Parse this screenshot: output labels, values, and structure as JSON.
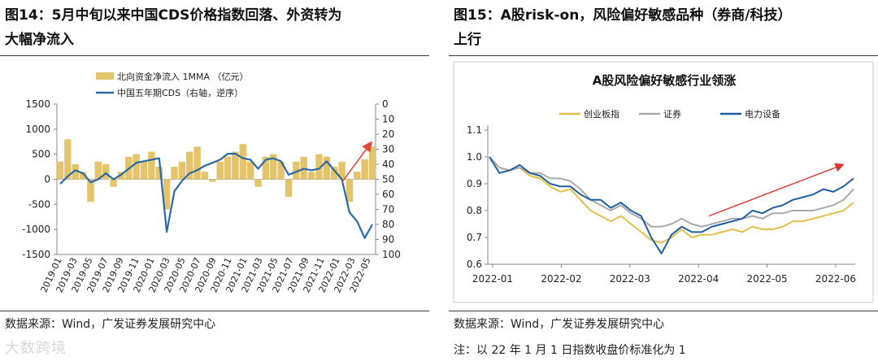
{
  "left": {
    "fig_label": "图14：",
    "title_line1": "5月中旬以来中国CDS价格指数回落、外资转为",
    "title_line2": "大幅净流入",
    "source": "数据来源：Wind，广发证券发展研究中心",
    "watermark": "大数跨境",
    "chart_data": {
      "type": "bar+line",
      "legend": [
        "北向资金净流入 1MMA （亿元）",
        "中国五年期CDS（右轴，逆序）"
      ],
      "x_ticks": [
        "2019-01",
        "2019-03",
        "2019-05",
        "2019-07",
        "2019-09",
        "2019-11",
        "2020-01",
        "2020-03",
        "2020-05",
        "2020-07",
        "2020-09",
        "2020-11",
        "2021-01",
        "2021-03",
        "2021-05",
        "2021-07",
        "2021-09",
        "2021-11",
        "2022-01",
        "2022-03",
        "2022-05"
      ],
      "y_left_ticks": [
        "1500",
        "1000",
        "500",
        "0",
        "-500",
        "-1000",
        "-1500"
      ],
      "y_left_range": [
        -1500,
        1500
      ],
      "y_right_ticks": [
        "0",
        "10",
        "20",
        "30",
        "40",
        "50",
        "60",
        "70",
        "80",
        "90",
        "100"
      ],
      "y_right_range": [
        0,
        100
      ],
      "y_right_inverted": true,
      "colors": {
        "bars": "#e4c46a",
        "line": "#2b6aa6",
        "arrow": "#e04a3a"
      },
      "months": [
        "2019-01",
        "2019-02",
        "2019-03",
        "2019-04",
        "2019-05",
        "2019-06",
        "2019-07",
        "2019-08",
        "2019-09",
        "2019-10",
        "2019-11",
        "2019-12",
        "2020-01",
        "2020-02",
        "2020-03",
        "2020-04",
        "2020-05",
        "2020-06",
        "2020-07",
        "2020-08",
        "2020-09",
        "2020-10",
        "2020-11",
        "2020-12",
        "2021-01",
        "2021-02",
        "2021-03",
        "2021-04",
        "2021-05",
        "2021-06",
        "2021-07",
        "2021-08",
        "2021-09",
        "2021-10",
        "2021-11",
        "2021-12",
        "2022-01",
        "2022-02",
        "2022-03",
        "2022-04",
        "2022-05",
        "2022-06"
      ],
      "northbound_flow": [
        350,
        800,
        300,
        150,
        -450,
        350,
        300,
        -150,
        150,
        450,
        500,
        350,
        550,
        250,
        -600,
        250,
        350,
        550,
        650,
        150,
        -50,
        350,
        450,
        550,
        700,
        350,
        -150,
        450,
        500,
        350,
        -350,
        350,
        450,
        150,
        500,
        450,
        250,
        350,
        -450,
        150,
        400,
        650
      ],
      "cds_5y": [
        53,
        48,
        44,
        46,
        52,
        50,
        46,
        50,
        47,
        43,
        39,
        38,
        37,
        36,
        85,
        58,
        51,
        46,
        44,
        41,
        39,
        37,
        33,
        33,
        36,
        37,
        43,
        37,
        36,
        38,
        47,
        45,
        43,
        44,
        43,
        38,
        44,
        50,
        72,
        78,
        89,
        80
      ]
    }
  },
  "right": {
    "fig_label": "图15：",
    "title_line1": "A股risk-on，风险偏好敏感品种（券商/科技）",
    "title_line2": "上行",
    "source": "数据来源：Wind，广发证券发展研究中心",
    "note": "注：以 22 年 1 月 1 日指数收盘价标准化为 1",
    "chart_data": {
      "type": "line",
      "title": "A股风险偏好敏感行业领涨",
      "series": [
        {
          "name": "创业板指",
          "color": "#e2c04a",
          "values": [
            1.0,
            0.96,
            0.95,
            0.96,
            0.93,
            0.92,
            0.89,
            0.87,
            0.88,
            0.84,
            0.8,
            0.78,
            0.76,
            0.78,
            0.75,
            0.72,
            0.69,
            0.68,
            0.7,
            0.73,
            0.7,
            0.71,
            0.71,
            0.72,
            0.73,
            0.72,
            0.74,
            0.73,
            0.73,
            0.74,
            0.76,
            0.76,
            0.77,
            0.78,
            0.79,
            0.8,
            0.83
          ]
        },
        {
          "name": "证券",
          "color": "#a9a9a9",
          "values": [
            1.0,
            0.96,
            0.95,
            0.96,
            0.94,
            0.94,
            0.92,
            0.92,
            0.91,
            0.88,
            0.84,
            0.82,
            0.8,
            0.82,
            0.79,
            0.77,
            0.74,
            0.74,
            0.75,
            0.77,
            0.75,
            0.74,
            0.75,
            0.76,
            0.77,
            0.77,
            0.78,
            0.77,
            0.79,
            0.79,
            0.8,
            0.8,
            0.8,
            0.81,
            0.82,
            0.84,
            0.88
          ]
        },
        {
          "name": "电力设备",
          "color": "#1f5fa0",
          "values": [
            1.0,
            0.94,
            0.95,
            0.97,
            0.94,
            0.93,
            0.9,
            0.89,
            0.89,
            0.86,
            0.84,
            0.84,
            0.81,
            0.83,
            0.8,
            0.78,
            0.7,
            0.64,
            0.71,
            0.74,
            0.72,
            0.72,
            0.74,
            0.75,
            0.76,
            0.77,
            0.8,
            0.79,
            0.81,
            0.82,
            0.84,
            0.85,
            0.86,
            0.88,
            0.87,
            0.89,
            0.92
          ]
        }
      ],
      "x_ticks": [
        "2022-01",
        "2022-02",
        "2022-03",
        "2022-04",
        "2022-05",
        "2022-06"
      ],
      "y_ticks": [
        "1.1",
        "1.0",
        "0.9",
        "0.8",
        "0.7",
        "0.6"
      ],
      "ylim": [
        0.6,
        1.1
      ]
    }
  }
}
